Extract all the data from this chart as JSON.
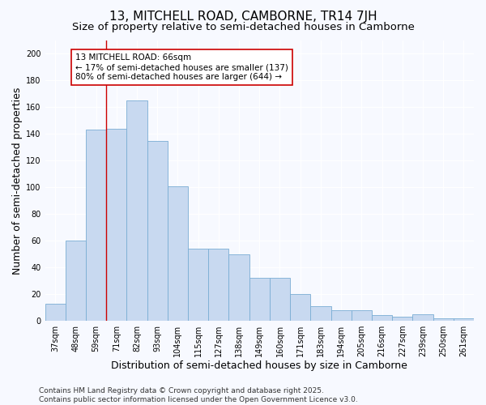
{
  "title_line1": "13, MITCHELL ROAD, CAMBORNE, TR14 7JH",
  "title_line2": "Size of property relative to semi-detached houses in Camborne",
  "xlabel": "Distribution of semi-detached houses by size in Camborne",
  "ylabel": "Number of semi-detached properties",
  "categories": [
    "37sqm",
    "48sqm",
    "59sqm",
    "71sqm",
    "82sqm",
    "93sqm",
    "104sqm",
    "115sqm",
    "127sqm",
    "138sqm",
    "149sqm",
    "160sqm",
    "171sqm",
    "183sqm",
    "194sqm",
    "205sqm",
    "216sqm",
    "227sqm",
    "239sqm",
    "250sqm",
    "261sqm"
  ],
  "values": [
    13,
    60,
    143,
    144,
    165,
    135,
    101,
    54,
    54,
    50,
    32,
    32,
    20,
    11,
    8,
    8,
    4,
    3,
    5,
    2,
    2
  ],
  "bar_color": "#c8d9f0",
  "bar_edge_color": "#7aadd4",
  "vline_x_index": 3,
  "vline_color": "#cc0000",
  "annotation_text": "13 MITCHELL ROAD: 66sqm\n← 17% of semi-detached houses are smaller (137)\n80% of semi-detached houses are larger (644) →",
  "annotation_box_facecolor": "#ffffff",
  "annotation_box_edgecolor": "#cc0000",
  "ylim": [
    0,
    210
  ],
  "yticks": [
    0,
    20,
    40,
    60,
    80,
    100,
    120,
    140,
    160,
    180,
    200
  ],
  "footer_text": "Contains HM Land Registry data © Crown copyright and database right 2025.\nContains public sector information licensed under the Open Government Licence v3.0.",
  "plot_bg_color": "#f7f9ff",
  "fig_bg_color": "#f7f9ff",
  "grid_color": "#ffffff",
  "title_fontsize": 11,
  "subtitle_fontsize": 9.5,
  "axis_label_fontsize": 9,
  "tick_fontsize": 7,
  "annotation_fontsize": 7.5,
  "footer_fontsize": 6.5
}
